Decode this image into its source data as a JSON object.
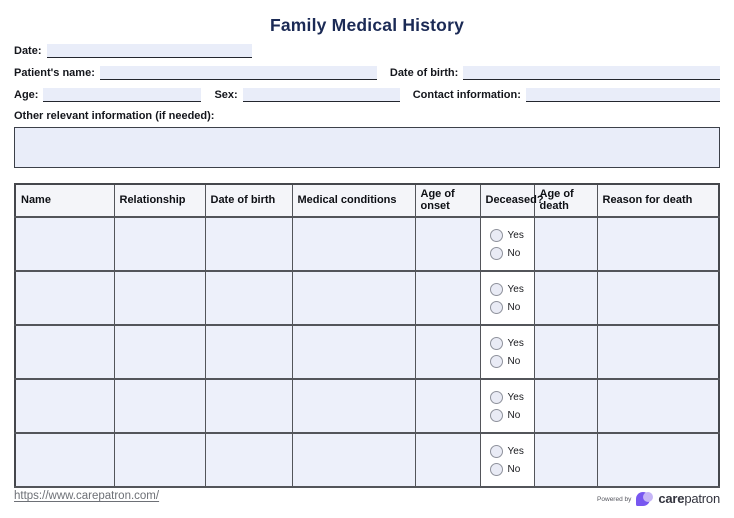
{
  "page": {
    "title": "Family Medical History"
  },
  "form": {
    "date_label": "Date:",
    "patient_name_label": "Patient's name:",
    "dob_label": "Date of birth:",
    "age_label": "Age:",
    "sex_label": "Sex:",
    "contact_label": "Contact information:",
    "other_info_label": "Other relevant information (if needed):",
    "values": {
      "date": "",
      "patient_name": "",
      "dob": "",
      "age": "",
      "sex": "",
      "contact": "",
      "other_info": ""
    }
  },
  "table": {
    "columns": [
      "Name",
      "Relationship",
      "Date of birth",
      "Medical conditions",
      "Age of onset",
      "Deceased?",
      "Age of death",
      "Reason for death"
    ],
    "deceased_column_index": 5,
    "row_count": 5,
    "deceased_options": [
      "Yes",
      "No"
    ],
    "cell_values": []
  },
  "footer": {
    "link": "https://www.carepatron.com/",
    "powered_by": "Powered by",
    "brand_bold": "care",
    "brand_light": "patron"
  },
  "colors": {
    "title_navy": "#1b2a55",
    "field_fill": "#e9edf9",
    "field_underline": "#23262e",
    "table_cell_fill": "#edf0fa",
    "table_header_fill": "#f4f5f9",
    "table_border": "#53555a",
    "brand_purple": "#7857f0",
    "brand_purple_light": "#c6b5f6",
    "footer_gray": "#6d7076"
  }
}
